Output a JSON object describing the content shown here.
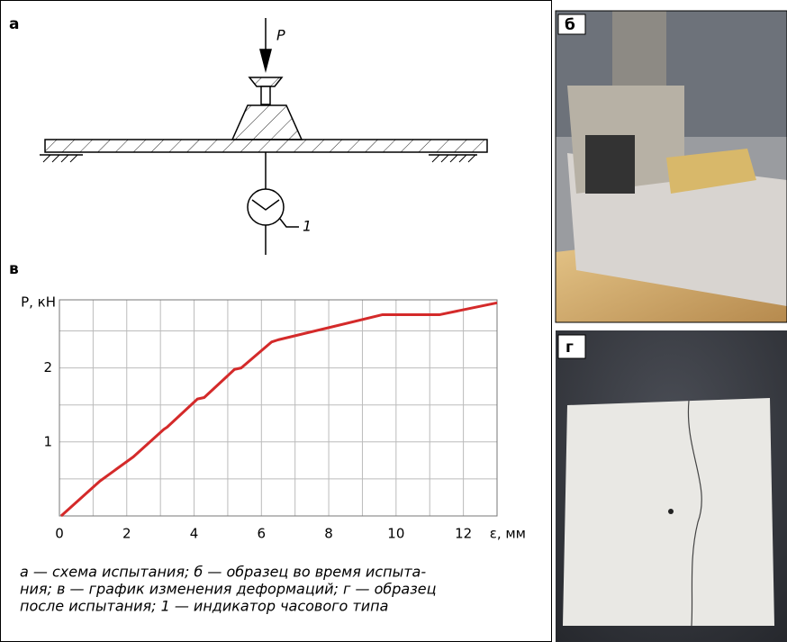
{
  "panels": {
    "a": "а",
    "b": "б",
    "v": "в",
    "g": "г"
  },
  "schematic": {
    "force_label": "P",
    "indicator_label": "1"
  },
  "chart_data": {
    "type": "line",
    "xlabel": "ε, мм",
    "ylabel": "P, кН",
    "x": [
      0.05,
      1.2,
      2.2,
      3.1,
      3.2,
      4.1,
      4.3,
      5.2,
      5.4,
      6.3,
      6.5,
      9.6,
      11.3,
      13
    ],
    "series": [
      {
        "color": "#d42a2a",
        "values": [
          0,
          0.47,
          0.8,
          1.17,
          1.2,
          1.58,
          1.6,
          1.98,
          2.0,
          2.35,
          2.38,
          2.72,
          2.72,
          2.88
        ]
      }
    ],
    "xlim": [
      0,
      13
    ],
    "ylim": [
      0,
      2.92
    ],
    "xticks": [
      0,
      2,
      4,
      6,
      8,
      10,
      12
    ],
    "yticks": [
      1,
      2
    ],
    "xgrid": [
      1,
      2,
      3,
      4,
      5,
      6,
      7,
      8,
      9,
      10,
      11,
      12
    ],
    "ygrid": [
      0.5,
      1,
      1.5,
      2,
      2.5
    ],
    "grid": true
  },
  "caption": {
    "lines": [
      "а — схема испытания; б — образец во время испыта-",
      "ния; в — график изменения деформаций; г — образец",
      "после испытания; 1 — индикатор часового типа"
    ]
  }
}
